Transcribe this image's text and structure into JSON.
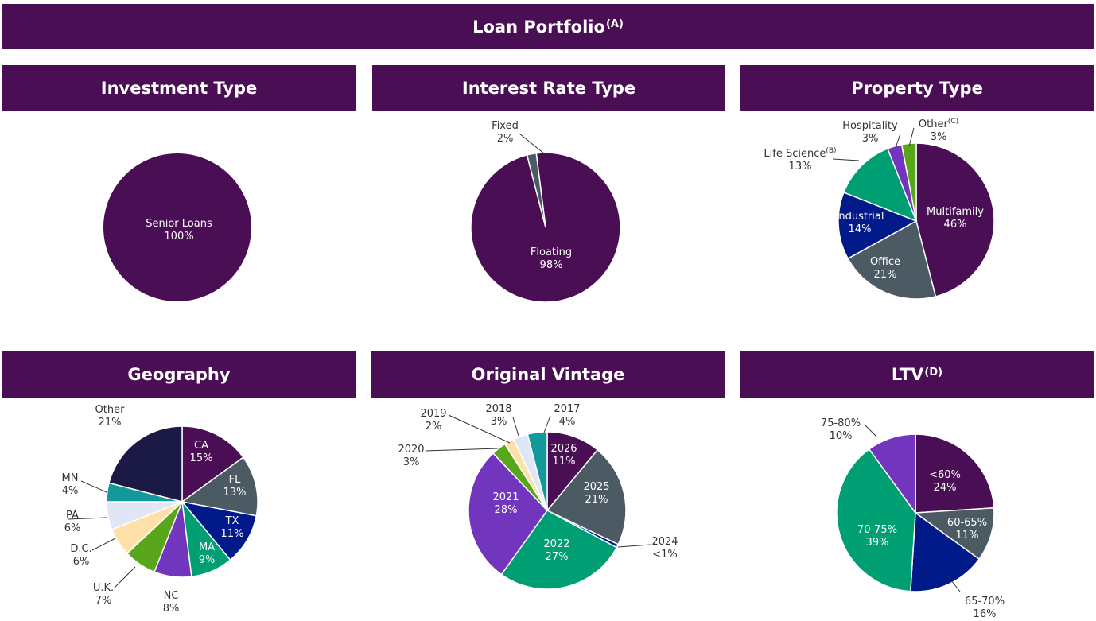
{
  "title": {
    "text": "Loan Portfolio",
    "note": "(A)"
  },
  "colors": {
    "header": "#4a0e55",
    "purple": "#4a0e55",
    "slate": "#4b5a63",
    "navy": "#001a8a",
    "green": "#009e73",
    "violet": "#7236be",
    "lime": "#5aa61a",
    "peach": "#fde1a9",
    "lavender": "#e1e6f7",
    "teal": "#14999a",
    "dark": "#1b1a47"
  },
  "chart_data": [
    {
      "type": "pie",
      "title": "Investment Type",
      "title_note": "",
      "slices": [
        {
          "label": "Senior Loans",
          "value_label": "100%",
          "value": 100,
          "color": "#4a0e55",
          "label_color": "#ffffff"
        }
      ]
    },
    {
      "type": "pie",
      "title": "Interest Rate Type",
      "title_note": "",
      "slices": [
        {
          "label": "Floating",
          "value_label": "98%",
          "value": 98,
          "color": "#4a0e55",
          "label_color": "#ffffff"
        },
        {
          "label": "Fixed",
          "value_label": "2%",
          "value": 2,
          "color": "#4b5a63",
          "label_color": "#333333"
        }
      ]
    },
    {
      "type": "pie",
      "title": "Property Type",
      "title_note": "",
      "slices": [
        {
          "label": "Multifamily",
          "value_label": "46%",
          "value": 46,
          "color": "#4a0e55",
          "label_color": "#ffffff"
        },
        {
          "label": "Office",
          "value_label": "21%",
          "value": 21,
          "color": "#4b5a63",
          "label_color": "#ffffff"
        },
        {
          "label": "Industrial",
          "value_label": "14%",
          "value": 14,
          "color": "#001a8a",
          "label_color": "#ffffff"
        },
        {
          "label": "Life Science",
          "note": "(B)",
          "value_label": "13%",
          "value": 13,
          "color": "#009e73",
          "label_color": "#333333"
        },
        {
          "label": "Hospitality",
          "value_label": "3%",
          "value": 3,
          "color": "#7236be",
          "label_color": "#333333"
        },
        {
          "label": "Other",
          "note": "(C)",
          "value_label": "3%",
          "value": 3,
          "color": "#5aa61a",
          "label_color": "#333333"
        }
      ]
    },
    {
      "type": "pie",
      "title": "Geography",
      "title_note": "",
      "slices": [
        {
          "label": "CA",
          "value_label": "15%",
          "value": 15,
          "color": "#4a0e55",
          "label_color": "#ffffff"
        },
        {
          "label": "FL",
          "value_label": "13%",
          "value": 13,
          "color": "#4b5a63",
          "label_color": "#ffffff"
        },
        {
          "label": "TX",
          "value_label": "11%",
          "value": 11,
          "color": "#001a8a",
          "label_color": "#ffffff"
        },
        {
          "label": "MA",
          "value_label": "9%",
          "value": 9,
          "color": "#009e73",
          "label_color": "#ffffff"
        },
        {
          "label": "NC",
          "value_label": "8%",
          "value": 8,
          "color": "#7236be",
          "label_color": "#333333"
        },
        {
          "label": "U.K.",
          "value_label": "7%",
          "value": 7,
          "color": "#5aa61a",
          "label_color": "#333333"
        },
        {
          "label": "D.C.",
          "value_label": "6%",
          "value": 6,
          "color": "#fde1a9",
          "label_color": "#333333"
        },
        {
          "label": "PA",
          "value_label": "6%",
          "value": 6,
          "color": "#e1e6f7",
          "label_color": "#333333"
        },
        {
          "label": "MN",
          "value_label": "4%",
          "value": 4,
          "color": "#14999a",
          "label_color": "#333333"
        },
        {
          "label": "Other",
          "value_label": "21%",
          "value": 21,
          "color": "#1b1a47",
          "label_color": "#333333"
        }
      ]
    },
    {
      "type": "pie",
      "title": "Original Vintage",
      "title_note": "",
      "slices": [
        {
          "label": "2026",
          "value_label": "11%",
          "value": 11,
          "color": "#4a0e55",
          "label_color": "#ffffff"
        },
        {
          "label": "2025",
          "value_label": "21%",
          "value": 21,
          "color": "#4b5a63",
          "label_color": "#ffffff"
        },
        {
          "label": "2024",
          "value_label": "<1%",
          "value": 0.7,
          "color": "#001a8a",
          "label_color": "#333333"
        },
        {
          "label": "2022",
          "value_label": "27%",
          "value": 27,
          "color": "#009e73",
          "label_color": "#ffffff"
        },
        {
          "label": "2021",
          "value_label": "28%",
          "value": 28,
          "color": "#7236be",
          "label_color": "#ffffff"
        },
        {
          "label": "2020",
          "value_label": "3%",
          "value": 3,
          "color": "#5aa61a",
          "label_color": "#333333"
        },
        {
          "label": "2019",
          "value_label": "2%",
          "value": 2,
          "color": "#fde1a9",
          "label_color": "#333333"
        },
        {
          "label": "2018",
          "value_label": "3%",
          "value": 3,
          "color": "#e1e6f7",
          "label_color": "#333333"
        },
        {
          "label": "2017",
          "value_label": "4%",
          "value": 4,
          "color": "#14999a",
          "label_color": "#333333"
        }
      ]
    },
    {
      "type": "pie",
      "title": "LTV",
      "title_note": "(D)",
      "slices": [
        {
          "label": "<60%",
          "value_label": "24%",
          "value": 24,
          "color": "#4a0e55",
          "label_color": "#ffffff"
        },
        {
          "label": "60-65%",
          "value_label": "11%",
          "value": 11,
          "color": "#4b5a63",
          "label_color": "#ffffff"
        },
        {
          "label": "65-70%",
          "value_label": "16%",
          "value": 16,
          "color": "#001a8a",
          "label_color": "#333333"
        },
        {
          "label": "70-75%",
          "value_label": "39%",
          "value": 39,
          "color": "#009e73",
          "label_color": "#ffffff"
        },
        {
          "label": "75-80%",
          "value_label": "10%",
          "value": 10,
          "color": "#7236be",
          "label_color": "#333333"
        }
      ]
    }
  ]
}
